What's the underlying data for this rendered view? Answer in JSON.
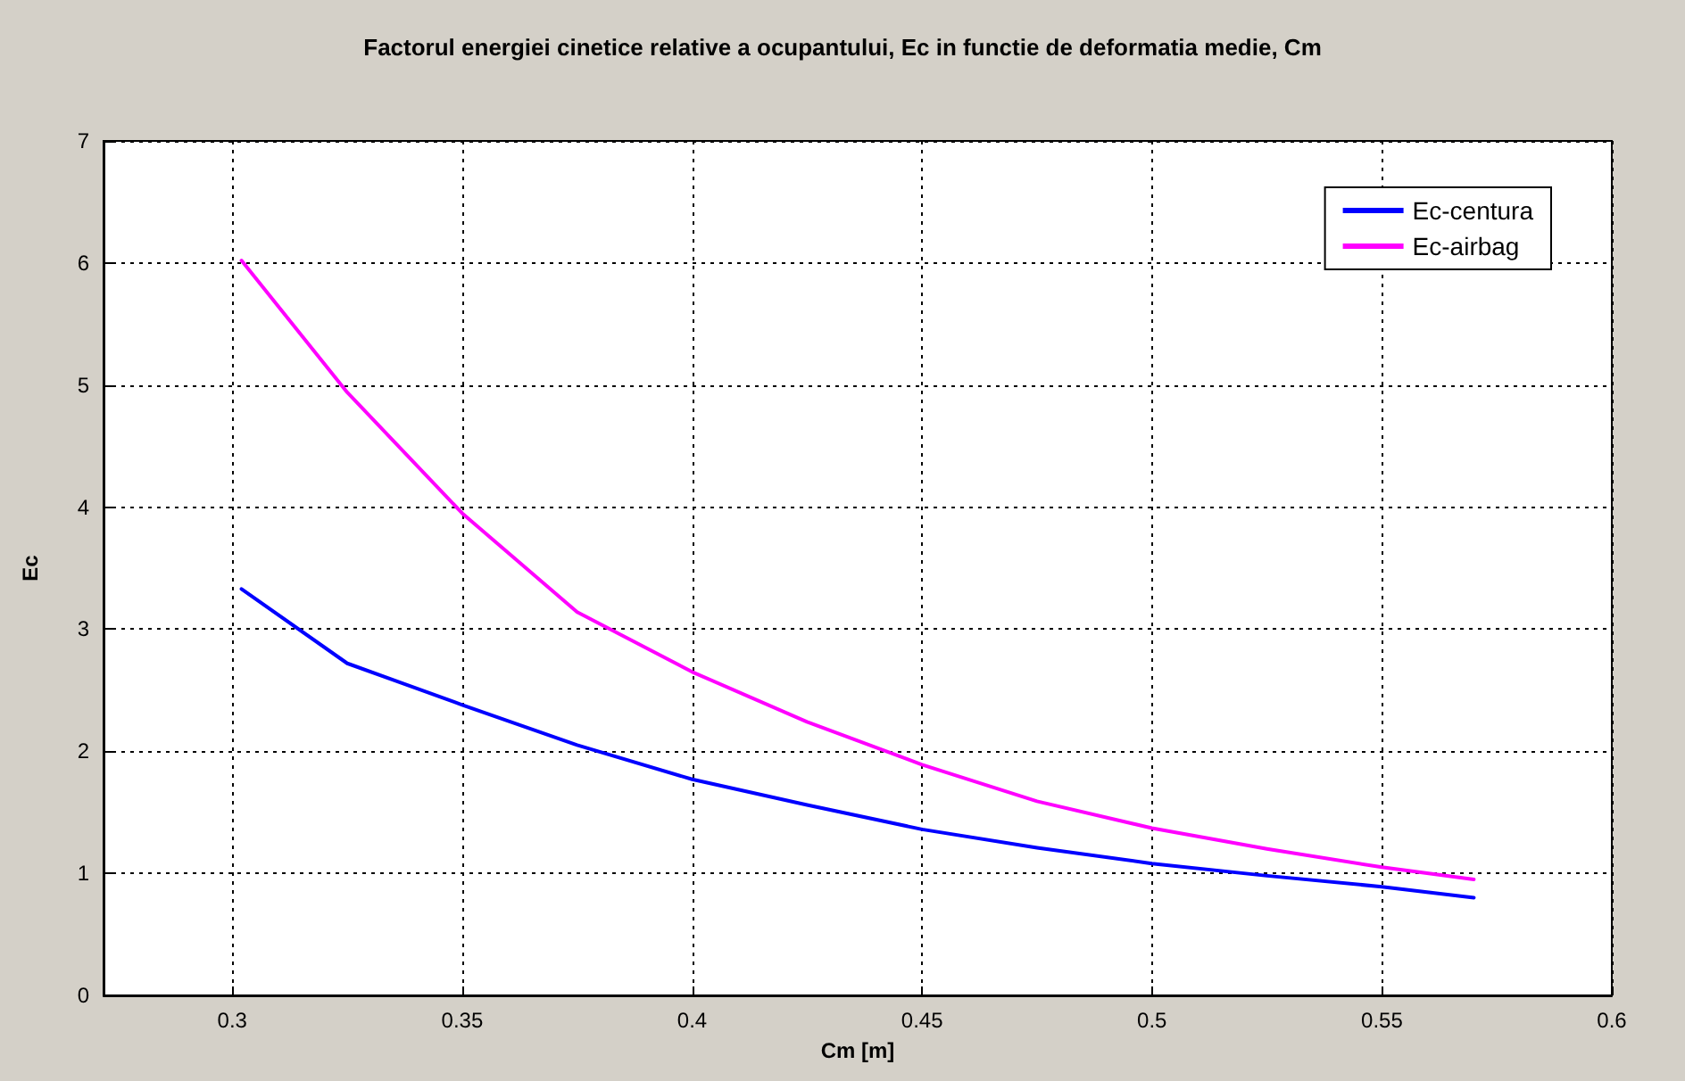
{
  "chart_data": {
    "type": "line",
    "title": "Factorul energiei cinetice relative a ocupantului, Ec in functie de deformatia medie, Cm",
    "xlabel": "Cm [m]",
    "ylabel": "Ec",
    "x": [
      0.302,
      0.325,
      0.35,
      0.375,
      0.4,
      0.425,
      0.45,
      0.475,
      0.5,
      0.525,
      0.55,
      0.57
    ],
    "series": [
      {
        "name": "Ec-centura",
        "color": "#0000ff",
        "values": [
          3.33,
          2.72,
          2.38,
          2.05,
          1.77,
          1.56,
          1.36,
          1.21,
          1.08,
          0.98,
          0.89,
          0.8
        ]
      },
      {
        "name": "Ec-airbag",
        "color": "#ff00ff",
        "values": [
          6.02,
          4.94,
          3.95,
          3.14,
          2.65,
          2.24,
          1.89,
          1.59,
          1.37,
          1.2,
          1.05,
          0.95
        ]
      }
    ],
    "xlim": [
      0.272,
      0.6
    ],
    "xticks": [
      0.3,
      0.35,
      0.4,
      0.45,
      0.5,
      0.55,
      0.6
    ],
    "ylim": [
      0,
      7
    ],
    "yticks": [
      0,
      1,
      2,
      3,
      4,
      5,
      6,
      7
    ],
    "grid": true,
    "legend": "top right",
    "marker": "none",
    "line_style": "solid"
  }
}
